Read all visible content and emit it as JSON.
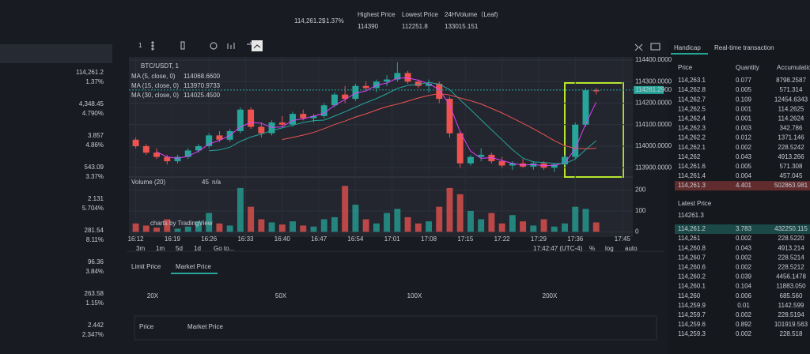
{
  "header": {
    "price": "114,261.2$",
    "change": "1.37%",
    "stats": [
      {
        "label": "Highest Price",
        "value": "114390"
      },
      {
        "label": "Lowest Price",
        "value": "112251.8"
      },
      {
        "label": "24HVolume（Leaf)",
        "value": "133015.151"
      }
    ]
  },
  "markets": [
    {
      "price": "114,261.2",
      "change": "1.37%"
    },
    {
      "price": "4,348.45",
      "change": "4.790%"
    },
    {
      "price": "3.857",
      "change": "4.86%"
    },
    {
      "price": "543.09",
      "change": "3.37%"
    },
    {
      "price": "2.131",
      "change": "5.704%"
    },
    {
      "price": "281.54",
      "change": "8.11%"
    },
    {
      "price": "96.36",
      "change": "3.84%"
    },
    {
      "price": "263.58",
      "change": "1.15%"
    },
    {
      "price": "2.442",
      "change": "2.347%"
    }
  ],
  "toolbar": {
    "interval": "1"
  },
  "chart_data": {
    "type": "candlestick",
    "symbol": "BTC/USDT, 1",
    "up_color": "#26a69a",
    "down_color": "#ef5350",
    "ma": [
      {
        "name": "MA (5, close, 0)",
        "value": "114068.6600",
        "color": "#e040fb"
      },
      {
        "name": "MA (15, close, 0)",
        "value": "113970.9733",
        "color": "#26a69a"
      },
      {
        "name": "MA (30, close, 0)",
        "value": "114025.4500",
        "color": "#ef5350"
      }
    ],
    "volume_label": "Volume (20)",
    "volume_value": "45",
    "volume_na": "n/a",
    "watermark": "charts by TradingView",
    "x": [
      0,
      2,
      4,
      6,
      8,
      10,
      12,
      14,
      16,
      18,
      20,
      22,
      24,
      26,
      28,
      30,
      32,
      34,
      36,
      38,
      40,
      42,
      44,
      46,
      48,
      50,
      52,
      54,
      56,
      58,
      60,
      62,
      64,
      66,
      68,
      70,
      72,
      74,
      76,
      78,
      80,
      82,
      84,
      86,
      88
    ],
    "candles": [
      [
        114030,
        114040,
        113990,
        114000
      ],
      [
        114000,
        114010,
        113960,
        113970
      ],
      [
        113970,
        113990,
        113940,
        113950
      ],
      [
        113950,
        113960,
        113915,
        113930
      ],
      [
        113930,
        113960,
        113920,
        113950
      ],
      [
        113950,
        113990,
        113940,
        113980
      ],
      [
        113980,
        114010,
        113970,
        114000
      ],
      [
        114000,
        114060,
        113990,
        114050
      ],
      [
        114050,
        114070,
        114020,
        114030
      ],
      [
        114030,
        114080,
        114020,
        114070
      ],
      [
        114070,
        114180,
        114060,
        114170
      ],
      [
        114170,
        114180,
        114080,
        114090
      ],
      [
        114090,
        114110,
        114040,
        114060
      ],
      [
        114060,
        114120,
        114050,
        114110
      ],
      [
        114110,
        114140,
        114090,
        114100
      ],
      [
        114100,
        114160,
        114090,
        114150
      ],
      [
        114150,
        114170,
        114120,
        114130
      ],
      [
        114130,
        114150,
        114110,
        114140
      ],
      [
        114140,
        114200,
        114130,
        114190
      ],
      [
        114190,
        114250,
        114180,
        114240
      ],
      [
        114240,
        114280,
        114200,
        114220
      ],
      [
        114220,
        114290,
        114210,
        114280
      ],
      [
        114280,
        114300,
        114260,
        114270
      ],
      [
        114270,
        114310,
        114250,
        114300
      ],
      [
        114300,
        114330,
        114280,
        114310
      ],
      [
        114310,
        114390,
        114300,
        114340
      ],
      [
        114340,
        114350,
        114290,
        114300
      ],
      [
        114300,
        114310,
        114270,
        114280
      ],
      [
        114280,
        114310,
        114250,
        114290
      ],
      [
        114290,
        114300,
        114200,
        114220
      ],
      [
        114220,
        114230,
        114040,
        114060
      ],
      [
        114060,
        114070,
        113900,
        113920
      ],
      [
        113920,
        113960,
        113910,
        113950
      ],
      [
        113950,
        113990,
        113930,
        113960
      ],
      [
        113960,
        113970,
        113920,
        113930
      ],
      [
        113930,
        113950,
        113900,
        113910
      ],
      [
        113910,
        113930,
        113890,
        113920
      ],
      [
        113920,
        113940,
        113900,
        113905
      ],
      [
        113905,
        113930,
        113890,
        113920
      ],
      [
        113920,
        113930,
        113890,
        113900
      ],
      [
        113900,
        113920,
        113880,
        113915
      ],
      [
        113915,
        113960,
        113910,
        113950
      ],
      [
        113950,
        114110,
        113940,
        114100
      ],
      [
        114100,
        114270,
        114090,
        114260
      ],
      [
        114260,
        114270,
        114240,
        114255
      ]
    ],
    "volume": [
      40,
      30,
      20,
      60,
      15,
      25,
      50,
      90,
      40,
      30,
      210,
      120,
      60,
      45,
      35,
      50,
      30,
      25,
      60,
      70,
      220,
      130,
      60,
      40,
      90,
      110,
      70,
      40,
      50,
      120,
      210,
      180,
      100,
      60,
      90,
      40,
      80,
      50,
      30,
      60,
      25,
      40,
      120,
      110,
      45
    ],
    "xlim": [
      -1.3,
      95
    ],
    "xticks": [
      {
        "value": 0,
        "label": "16:12"
      },
      {
        "value": 7,
        "label": "16:19"
      },
      {
        "value": 14,
        "label": "16:26"
      },
      {
        "value": 21,
        "label": "16:33"
      },
      {
        "value": 28,
        "label": "16:40"
      },
      {
        "value": 35,
        "label": "16:47"
      },
      {
        "value": 42,
        "label": "16:54"
      },
      {
        "value": 49,
        "label": "17:01"
      },
      {
        "value": 56,
        "label": "17:08"
      },
      {
        "value": 63,
        "label": "17:15"
      },
      {
        "value": 70,
        "label": "17:22"
      },
      {
        "value": 77,
        "label": "17:29"
      },
      {
        "value": 84,
        "label": "17:36"
      },
      {
        "value": 93,
        "label": "17:45"
      }
    ],
    "ylim": [
      113864,
      114415
    ],
    "yticks": [
      {
        "value": 114400,
        "label": "114400.0000"
      },
      {
        "value": 114300,
        "label": "114300.0000"
      },
      {
        "value": 114200,
        "label": "114200.0000"
      },
      {
        "value": 114100,
        "label": "114100.0000"
      },
      {
        "value": 114000,
        "label": "114000.0000"
      },
      {
        "value": 113900,
        "label": "113900.0000"
      }
    ],
    "last_price": {
      "value": 114261.29,
      "label": "114261.2900"
    },
    "y2lim": [
      -10,
      255
    ],
    "y2ticks": [
      0,
      100,
      200
    ]
  },
  "range_buttons": [
    "3m",
    "1m",
    "5d",
    "1d",
    "Go to..."
  ],
  "clock": "17:42:47 (UTC-4)",
  "scale_options": [
    "%",
    "log",
    "auto"
  ],
  "order": {
    "tabs": [
      "Limit Price",
      "Market Price"
    ],
    "leverage": [
      "20X",
      "50X",
      "100X",
      "200X"
    ],
    "price_label": "Price",
    "price_value": "Market Price"
  },
  "book": {
    "tabs": [
      "Handicap",
      "Real-time transaction"
    ],
    "headers": [
      "Price",
      "Quantity",
      "Accumulation"
    ],
    "asks": [
      [
        "114,263.1",
        "0.077",
        "8798.2587"
      ],
      [
        "114,262.8",
        "0.005",
        "571.314"
      ],
      [
        "114,262.7",
        "0.109",
        "12454.6343"
      ],
      [
        "114,262.5",
        "0.001",
        "114.2625"
      ],
      [
        "114,262.4",
        "0.001",
        "114.2624"
      ],
      [
        "114,262.3",
        "0.003",
        "342.786"
      ],
      [
        "114,262.2",
        "0.012",
        "1371.146"
      ],
      [
        "114,262.1",
        "0.002",
        "228.5242"
      ],
      [
        "114,262",
        "0.043",
        "4913.266"
      ],
      [
        "114,261.6",
        "0.005",
        "571.308"
      ],
      [
        "114,261.4",
        "0.004",
        "457.045"
      ],
      [
        "114,261.3",
        "4.401",
        "502863.981"
      ]
    ],
    "latest_label": "Latest Price",
    "latest": "114261.3",
    "bids": [
      [
        "114,261.2",
        "3.783",
        "432250.115"
      ],
      [
        "114,261",
        "0.002",
        "228.5220"
      ],
      [
        "114,260.8",
        "0.043",
        "4913.214"
      ],
      [
        "114,260.7",
        "0.002",
        "228.5214"
      ],
      [
        "114,260.6",
        "0.002",
        "228.5212"
      ],
      [
        "114,260.2",
        "0.039",
        "4456.1478"
      ],
      [
        "114,260.1",
        "0.104",
        "11883.050"
      ],
      [
        "114,260",
        "0.006",
        "685.560"
      ],
      [
        "114,259.9",
        "0.01",
        "1142.599"
      ],
      [
        "114,259.7",
        "0.002",
        "228.5194"
      ],
      [
        "114,259.6",
        "0.892",
        "101919.563"
      ],
      [
        "114,259.3",
        "0.002",
        "228.518"
      ]
    ]
  }
}
